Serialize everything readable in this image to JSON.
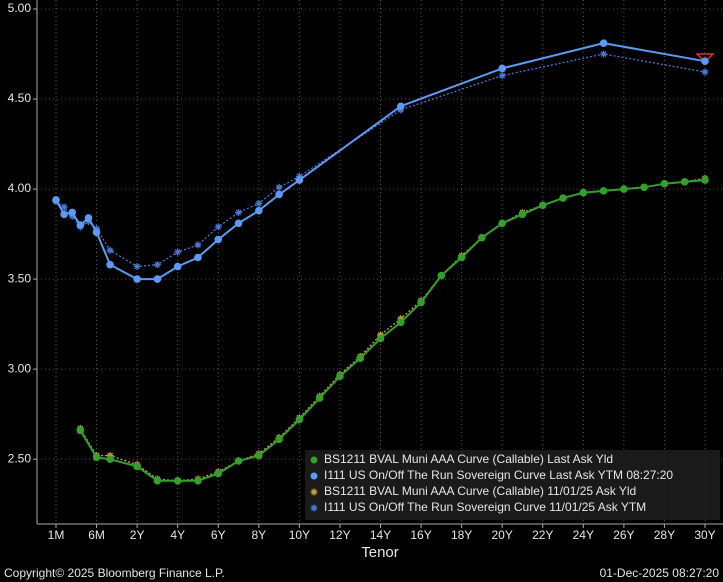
{
  "chart_data": {
    "type": "line",
    "xlabel": "Tenor",
    "footer_left": "Copyright© 2025 Bloomberg Finance L.P.",
    "footer_right": "01-Dec-2025 08:27:20",
    "ylim": [
      2.14,
      5.05
    ],
    "yticks": [
      {
        "value": 2.5,
        "label": "2.50"
      },
      {
        "value": 3,
        "label": "3.00"
      },
      {
        "value": 3.5,
        "label": "3.50"
      },
      {
        "value": 4,
        "label": "4.00"
      },
      {
        "value": 4.5,
        "label": "4.50"
      },
      {
        "value": 5,
        "label": "5.00"
      }
    ],
    "xticks": [
      {
        "value": 0.0833,
        "label": "1M"
      },
      {
        "value": 0.5,
        "label": "6M"
      },
      {
        "value": 2,
        "label": "2Y"
      },
      {
        "value": 4,
        "label": "4Y"
      },
      {
        "value": 6,
        "label": "6Y"
      },
      {
        "value": 8,
        "label": "8Y"
      },
      {
        "value": 10,
        "label": "10Y"
      },
      {
        "value": 12,
        "label": "12Y"
      },
      {
        "value": 14,
        "label": "14Y"
      },
      {
        "value": 16,
        "label": "16Y"
      },
      {
        "value": 18,
        "label": "18Y"
      },
      {
        "value": 20,
        "label": "20Y"
      },
      {
        "value": 22,
        "label": "22Y"
      },
      {
        "value": 24,
        "label": "24Y"
      },
      {
        "value": 26,
        "label": "26Y"
      },
      {
        "value": 28,
        "label": "28Y"
      },
      {
        "value": 30,
        "label": "30Y"
      }
    ],
    "grid": true,
    "legend": "lower right",
    "series": [
      {
        "name": "BS1211 BVAL Muni AAA Curve (Callable) Last Ask Yld",
        "color": "#33a02c",
        "style": "solid",
        "marker": "circle",
        "x": [
          0.333,
          0.5,
          1,
          2,
          3,
          4,
          5,
          6,
          7,
          8,
          9,
          10,
          11,
          12,
          13,
          14,
          15,
          16,
          17,
          18,
          19,
          20,
          21,
          22,
          23,
          24,
          25,
          26,
          27,
          28,
          29,
          30
        ],
        "values": [
          2.66,
          2.51,
          2.5,
          2.46,
          2.38,
          2.38,
          2.38,
          2.42,
          2.49,
          2.52,
          2.61,
          2.72,
          2.84,
          2.96,
          3.06,
          3.17,
          3.26,
          3.37,
          3.52,
          3.62,
          3.73,
          3.81,
          3.86,
          3.91,
          3.95,
          3.98,
          3.99,
          4.0,
          4.01,
          4.03,
          4.04,
          4.05
        ]
      },
      {
        "name": "I111 US On/Off The Run Sovereign Curve Last Ask YTM 08:27:20",
        "color": "#5b9bf5",
        "style": "solid",
        "marker": "circle",
        "x": [
          0.0833,
          0.1667,
          0.25,
          0.333,
          0.4167,
          0.5,
          1,
          2,
          3,
          4,
          5,
          6,
          7,
          8,
          9,
          10,
          15,
          20,
          25,
          30
        ],
        "values": [
          3.94,
          3.86,
          3.87,
          3.8,
          3.84,
          3.76,
          3.58,
          3.5,
          3.5,
          3.57,
          3.62,
          3.72,
          3.81,
          3.88,
          3.97,
          4.05,
          4.46,
          4.67,
          4.81,
          4.71
        ]
      },
      {
        "name": "BS1211 BVAL Muni AAA Curve (Callable) 11/01/25 Ask Yld",
        "color": "#c9a23a",
        "style": "dotted",
        "marker": "star",
        "x": [
          0.333,
          0.5,
          1,
          2,
          3,
          4,
          5,
          6,
          7,
          8,
          9,
          10,
          11,
          12,
          13,
          14,
          15,
          16,
          17,
          18,
          19,
          20,
          21,
          22,
          23,
          24,
          25,
          26,
          27,
          28,
          29,
          30
        ],
        "values": [
          2.67,
          2.52,
          2.52,
          2.47,
          2.39,
          2.38,
          2.39,
          2.43,
          2.49,
          2.53,
          2.62,
          2.73,
          2.85,
          2.97,
          3.07,
          3.19,
          3.28,
          3.38,
          3.52,
          3.63,
          3.73,
          3.81,
          3.87,
          3.91,
          3.95,
          3.98,
          3.99,
          4.0,
          4.01,
          4.03,
          4.04,
          4.06
        ]
      },
      {
        "name": "I111 US On/Off The Run Sovereign Curve 11/01/25 Ask YTM",
        "color": "#4a78d6",
        "style": "dotted",
        "marker": "star",
        "x": [
          0.0833,
          0.1667,
          0.25,
          0.333,
          0.4167,
          0.5,
          1,
          2,
          3,
          4,
          5,
          6,
          7,
          8,
          9,
          10,
          15,
          20,
          25,
          30
        ],
        "values": [
          3.93,
          3.9,
          3.85,
          3.79,
          3.82,
          3.78,
          3.66,
          3.57,
          3.58,
          3.65,
          3.69,
          3.79,
          3.87,
          3.92,
          4.01,
          4.07,
          4.44,
          4.63,
          4.75,
          4.65
        ]
      }
    ]
  }
}
